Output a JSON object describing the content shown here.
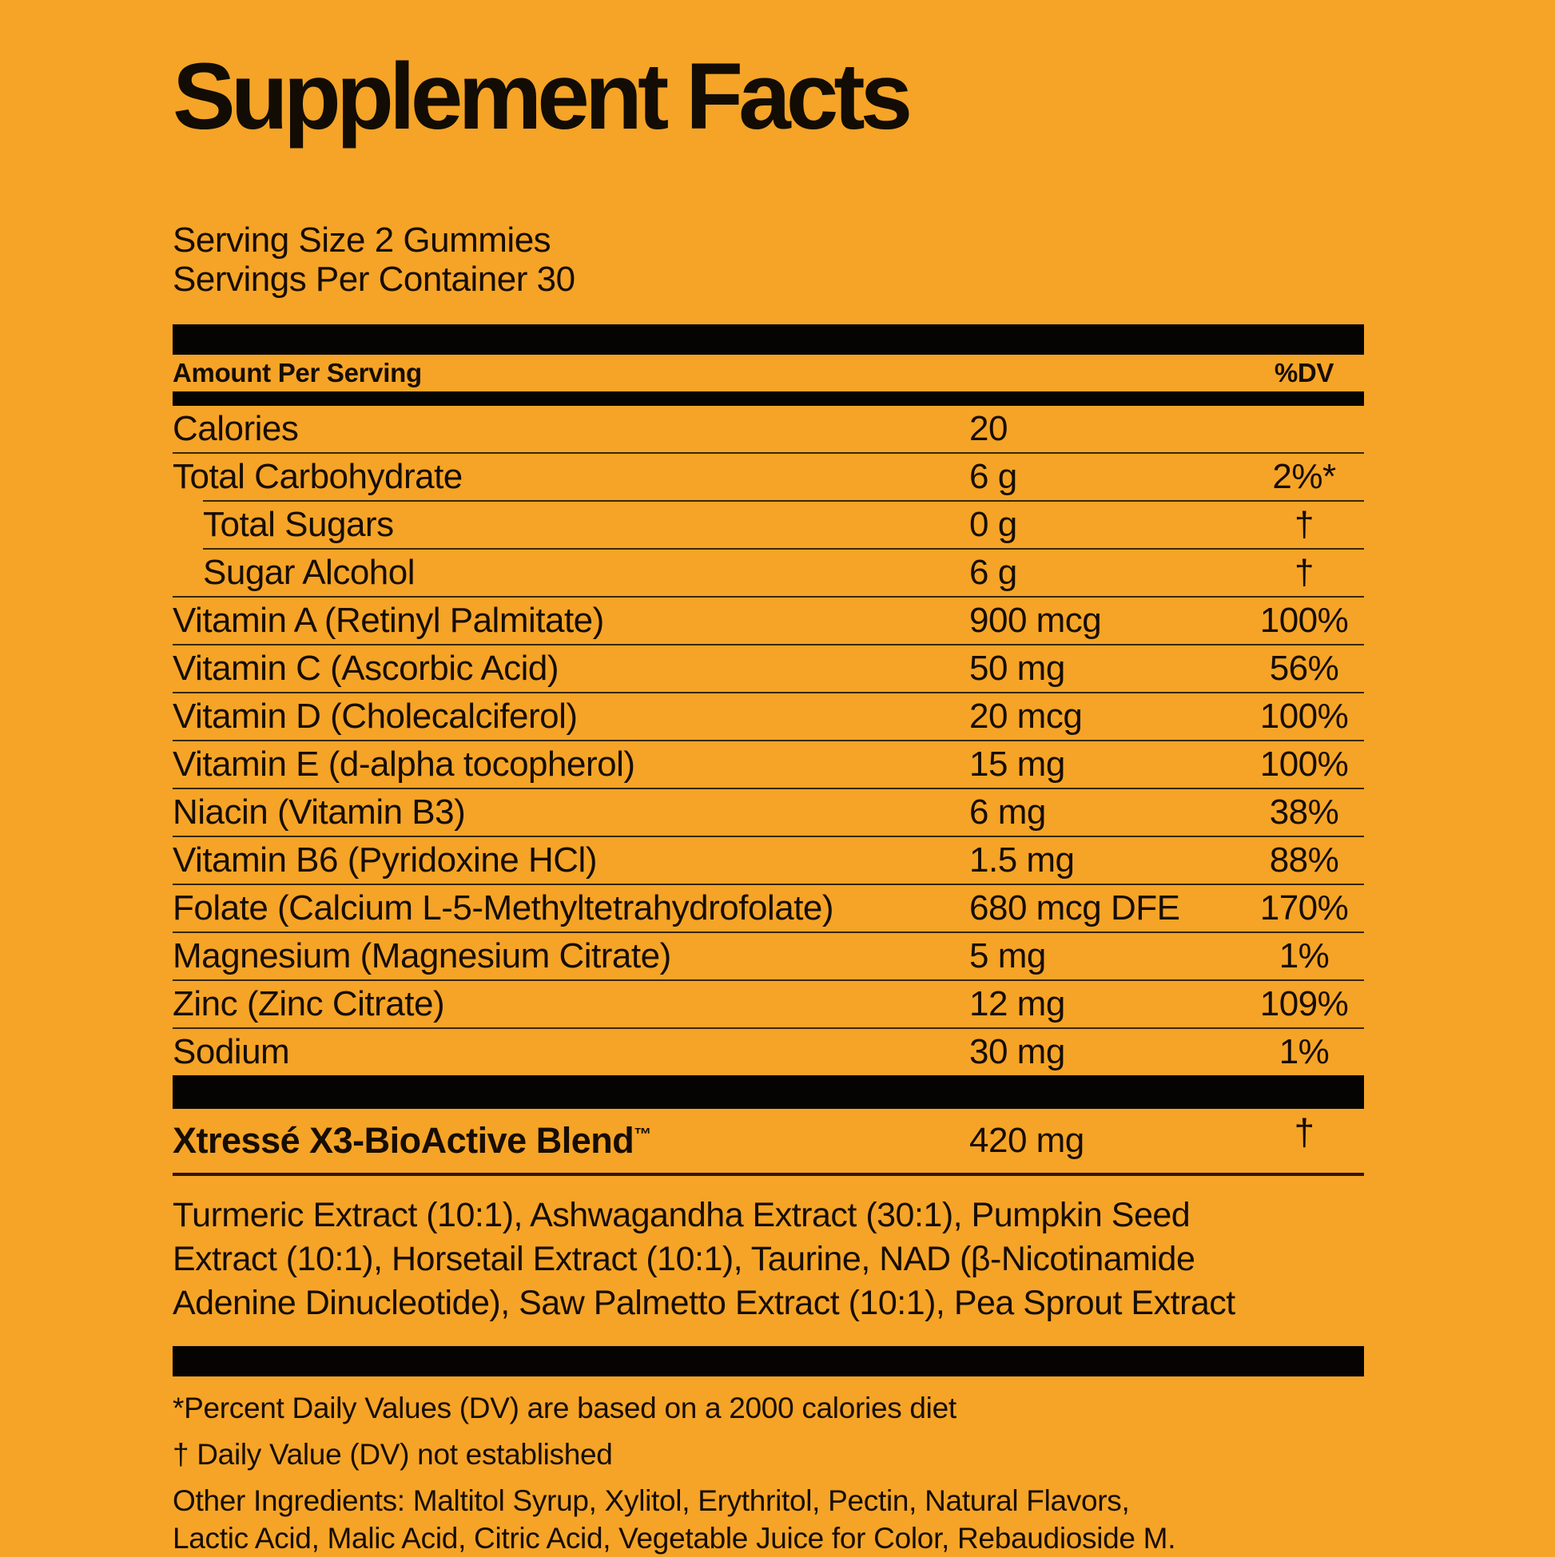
{
  "colors": {
    "background": "#F5A427",
    "bar": "#060402",
    "divider": "#3A2608",
    "text": "#170D02"
  },
  "title": "Supplement Facts",
  "serving": {
    "size": "Serving Size 2 Gummies",
    "per_container": "Servings Per Container 30"
  },
  "table": {
    "header": {
      "left": "Amount Per Serving",
      "right": "%DV"
    },
    "rows": [
      {
        "label": "Calories",
        "amount": "20",
        "dv": "",
        "indent": false
      },
      {
        "label": "Total Carbohydrate",
        "amount": "6 g",
        "dv": "2%*",
        "indent": false
      },
      {
        "label": "Total Sugars",
        "amount": "0 g",
        "dv": "†",
        "indent": true
      },
      {
        "label": "Sugar Alcohol",
        "amount": "6 g",
        "dv": "†",
        "indent": true
      },
      {
        "label": "Vitamin A (Retinyl Palmitate)",
        "amount": "900 mcg",
        "dv": "100%",
        "indent": false
      },
      {
        "label": "Vitamin C (Ascorbic Acid)",
        "amount": "50 mg",
        "dv": "56%",
        "indent": false
      },
      {
        "label": "Vitamin D (Cholecalciferol)",
        "amount": "20 mcg",
        "dv": "100%",
        "indent": false
      },
      {
        "label": "Vitamin E (d-alpha tocopherol)",
        "amount": "15 mg",
        "dv": "100%",
        "indent": false
      },
      {
        "label": "Niacin (Vitamin B3)",
        "amount": "6 mg",
        "dv": "38%",
        "indent": false
      },
      {
        "label": "Vitamin B6 (Pyridoxine HCl)",
        "amount": "1.5 mg",
        "dv": "88%",
        "indent": false
      },
      {
        "label": "Folate (Calcium L-5-Methyltetrahydrofolate)",
        "amount": "680 mcg DFE",
        "dv": "170%",
        "indent": false
      },
      {
        "label": "Magnesium (Magnesium Citrate)",
        "amount": "5 mg",
        "dv": "1%",
        "indent": false
      },
      {
        "label": "Zinc (Zinc Citrate)",
        "amount": "12 mg",
        "dv": "109%",
        "indent": false
      },
      {
        "label": "Sodium",
        "amount": "30 mg",
        "dv": "1%",
        "indent": false
      }
    ]
  },
  "blend": {
    "name": "Xtressé X3-BioActive Blend",
    "trademark": "™",
    "amount": "420 mg",
    "dv": "†",
    "ingredients_lines": [
      "Turmeric Extract (10:1), Ashwagandha Extract (30:1), Pumpkin Seed",
      "Extract (10:1), Horsetail Extract (10:1), Taurine, NAD (β-Nicotinamide",
      "Adenine Dinucleotide), Saw Palmetto Extract (10:1), Pea Sprout Extract"
    ]
  },
  "footnotes": {
    "percent_dv": "*Percent Daily Values (DV) are based on a 2000 calories diet",
    "not_established": "† Daily Value (DV) not established",
    "other_ingredients_lines": [
      "Other Ingredients: Maltitol Syrup, Xylitol, Erythritol, Pectin, Natural Flavors,",
      "Lactic Acid, Malic Acid, Citric Acid, Vegetable Juice for Color, Rebaudioside M."
    ]
  }
}
